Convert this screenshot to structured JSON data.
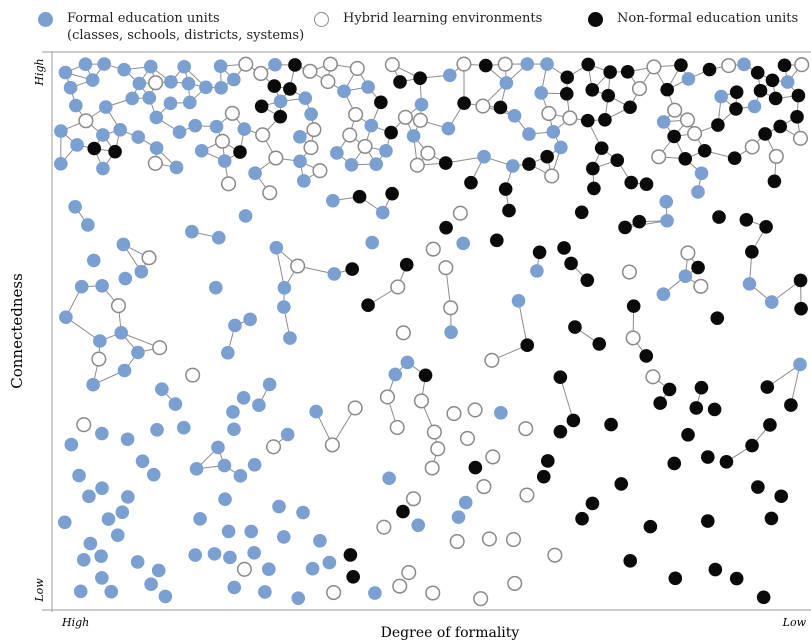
{
  "legend": {
    "formal": {
      "label": "Formal education units",
      "sublabel": "(classes, schools, districts, systems)",
      "color": "#7a9fd0"
    },
    "hybrid": {
      "label": "Hybrid learning environments",
      "fill": "#ffffff",
      "stroke": "#8a8a8a"
    },
    "nonformal": {
      "label": "Non-formal education units",
      "color": "#0a0a0a"
    }
  },
  "axes": {
    "y_label": "Connectedness",
    "y_high": "High",
    "y_low": "Low",
    "x_label": "Degree of formality",
    "x_high": "High",
    "x_low": "Low"
  }
}
